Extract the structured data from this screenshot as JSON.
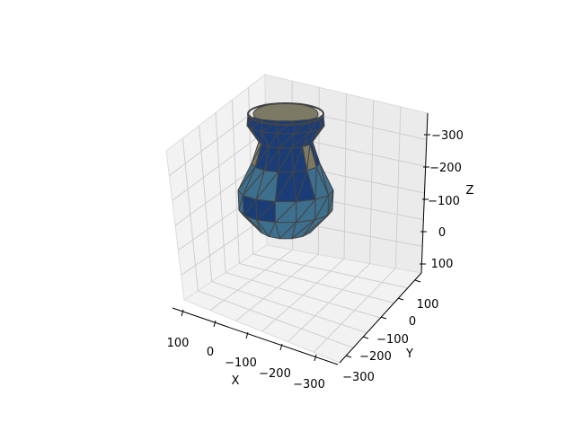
{
  "chart_data": {
    "type": "surface3d",
    "title": "",
    "axes": {
      "x": {
        "label": "X",
        "ticks": [
          "100",
          "0",
          "−100",
          "−200",
          "−300"
        ],
        "lim": [
          150,
          -350
        ],
        "direction": "inverted"
      },
      "y": {
        "label": "Y",
        "ticks": [
          "100",
          "0",
          "−100",
          "−200",
          "−300"
        ],
        "lim": [
          150,
          -350
        ],
        "direction": "inverted"
      },
      "z": {
        "label": "Z",
        "ticks": [
          "−300",
          "−200",
          "−100",
          "0",
          "100"
        ],
        "lim": [
          150,
          -350
        ],
        "direction": "inverted"
      }
    },
    "grid": true,
    "surface": {
      "shape": "vase",
      "mesh": "triangulated",
      "colors": {
        "top_band": "#1a3d78",
        "lower_band": "#3d6f8e",
        "interior": "#7c7a65",
        "edges": "#444444"
      }
    },
    "pane_colors": {
      "back": "#f2f2f2",
      "side": "#ebebeb",
      "floor": "#f2f2f2"
    }
  }
}
